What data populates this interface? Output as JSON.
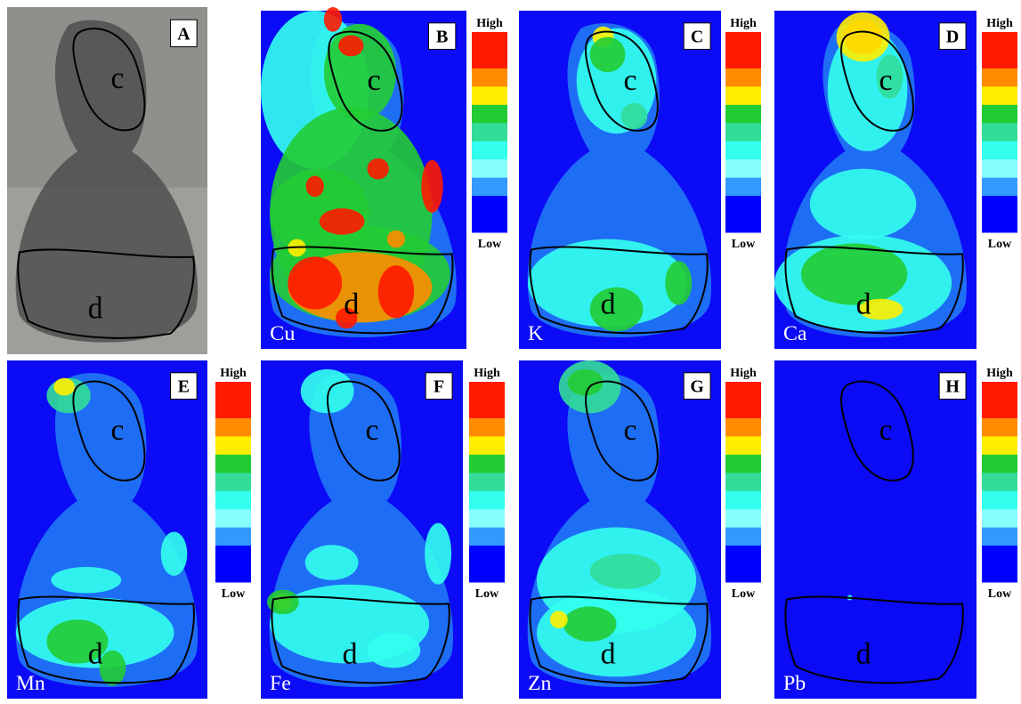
{
  "figure": {
    "panels": [
      {
        "letter": "A",
        "regions": [
          "c",
          "d"
        ]
      },
      {
        "letter": "B",
        "element": "Cu",
        "regions": [
          "c",
          "d"
        ],
        "scale": [
          "High",
          "Low"
        ]
      },
      {
        "letter": "C",
        "element": "K",
        "regions": [
          "c",
          "d"
        ],
        "scale": [
          "High",
          "Low"
        ]
      },
      {
        "letter": "D",
        "element": "Ca",
        "regions": [
          "c",
          "d"
        ],
        "scale": [
          "High",
          "Low"
        ]
      },
      {
        "letter": "E",
        "element": "Mn",
        "regions": [
          "c",
          "d"
        ],
        "scale": [
          "High",
          "Low"
        ]
      },
      {
        "letter": "F",
        "element": "Fe",
        "regions": [
          "c",
          "d"
        ],
        "scale": [
          "High",
          "Low"
        ]
      },
      {
        "letter": "G",
        "element": "Zn",
        "regions": [
          "c",
          "d"
        ],
        "scale": [
          "High",
          "Low"
        ]
      },
      {
        "letter": "H",
        "element": "Pb",
        "regions": [
          "c",
          "d"
        ],
        "scale": [
          "High",
          "Low"
        ]
      }
    ]
  }
}
